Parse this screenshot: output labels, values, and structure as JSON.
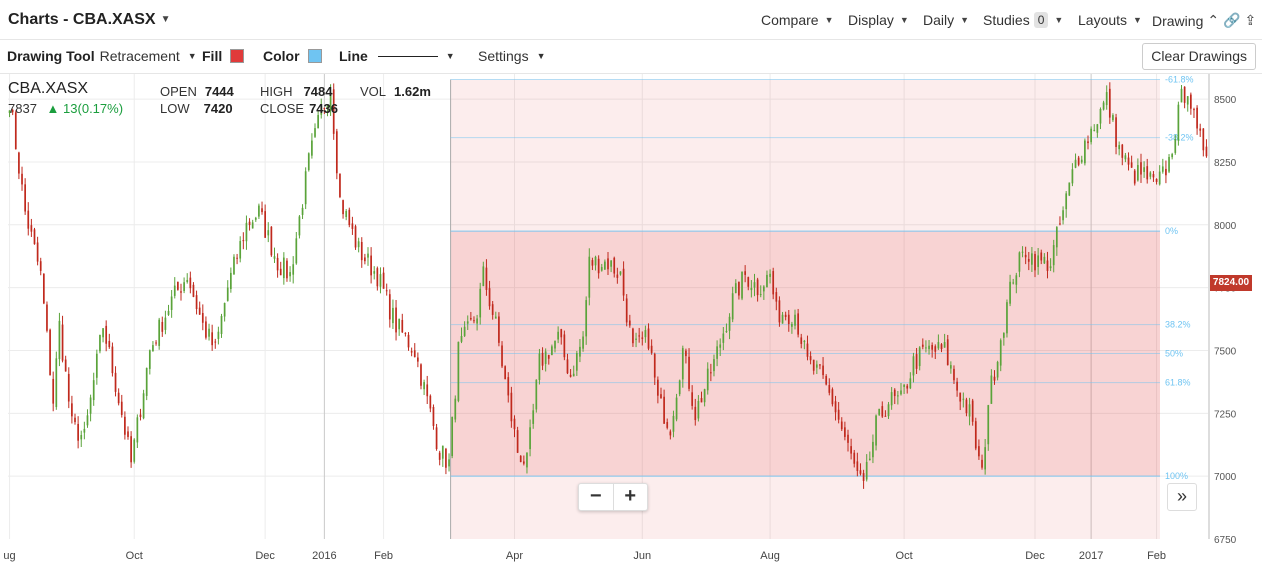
{
  "header": {
    "title": "Charts - CBA.XASX",
    "menus": [
      "Compare",
      "Display",
      "Daily",
      "Studies",
      "Layouts",
      "Drawing"
    ],
    "studies_count": "0"
  },
  "toolbar": {
    "drawing_tool_label": "Drawing Tool",
    "drawing_tool_value": "Retracement",
    "fill_label": "Fill",
    "fill_color": "#e03a3a",
    "color_label": "Color",
    "color_value": "#6fc4f2",
    "line_label": "Line",
    "settings_label": "Settings",
    "clear_label": "Clear Drawings"
  },
  "legend": {
    "symbol": "CBA.XASX",
    "last": "7837",
    "change": "13(0.17%)",
    "open_label": "OPEN",
    "open": "7444",
    "high_label": "HIGH",
    "high": "7484",
    "vol_label": "VOL",
    "vol": "1.62m",
    "low_label": "LOW",
    "low": "7420",
    "close_label": "CLOSE",
    "close": "7436"
  },
  "price_tag": "7824.00",
  "chart_data": {
    "type": "candlestick",
    "symbol": "CBA.XASX",
    "interval": "Daily",
    "xlabel": "",
    "ylabel": "",
    "ylim": [
      6750,
      8600
    ],
    "yticks": [
      6750,
      7000,
      7250,
      7500,
      7750,
      8000,
      8250,
      8500
    ],
    "xticks": [
      {
        "label": "ug",
        "i": 0
      },
      {
        "label": "Oct",
        "i": 40
      },
      {
        "label": "Dec",
        "i": 82
      },
      {
        "label": "2016",
        "i": 101
      },
      {
        "label": "Feb",
        "i": 120
      },
      {
        "label": "Apr",
        "i": 162
      },
      {
        "label": "Jun",
        "i": 203
      },
      {
        "label": "Aug",
        "i": 244
      },
      {
        "label": "Oct",
        "i": 287
      },
      {
        "label": "Dec",
        "i": 329
      },
      {
        "label": "2017",
        "i": 347
      },
      {
        "label": "Feb",
        "i": 368
      }
    ],
    "grid": true,
    "up_color": "#5aa33a",
    "down_color": "#c0291d",
    "anchors": [
      [
        0,
        8500
      ],
      [
        5,
        8050
      ],
      [
        10,
        7800
      ],
      [
        14,
        7300
      ],
      [
        16,
        7600
      ],
      [
        20,
        7200
      ],
      [
        24,
        7150
      ],
      [
        30,
        7600
      ],
      [
        36,
        7250
      ],
      [
        39,
        7050
      ],
      [
        45,
        7500
      ],
      [
        52,
        7700
      ],
      [
        57,
        7800
      ],
      [
        62,
        7600
      ],
      [
        66,
        7500
      ],
      [
        70,
        7750
      ],
      [
        76,
        8000
      ],
      [
        80,
        8050
      ],
      [
        86,
        7850
      ],
      [
        90,
        7800
      ],
      [
        96,
        8250
      ],
      [
        100,
        8450
      ],
      [
        103,
        8550
      ],
      [
        106,
        8100
      ],
      [
        112,
        7900
      ],
      [
        118,
        7800
      ],
      [
        124,
        7600
      ],
      [
        130,
        7500
      ],
      [
        134,
        7300
      ],
      [
        138,
        7100
      ],
      [
        141,
        7050
      ],
      [
        144,
        7500
      ],
      [
        150,
        7650
      ],
      [
        152,
        7800
      ],
      [
        156,
        7600
      ],
      [
        158,
        7450
      ],
      [
        160,
        7300
      ],
      [
        163,
        7100
      ],
      [
        166,
        7050
      ],
      [
        170,
        7450
      ],
      [
        176,
        7550
      ],
      [
        180,
        7400
      ],
      [
        184,
        7550
      ],
      [
        186,
        7850
      ],
      [
        192,
        7850
      ],
      [
        196,
        7800
      ],
      [
        200,
        7500
      ],
      [
        205,
        7550
      ],
      [
        208,
        7300
      ],
      [
        212,
        7200
      ],
      [
        216,
        7500
      ],
      [
        220,
        7250
      ],
      [
        226,
        7450
      ],
      [
        232,
        7700
      ],
      [
        236,
        7800
      ],
      [
        240,
        7750
      ],
      [
        244,
        7800
      ],
      [
        246,
        7650
      ],
      [
        252,
        7650
      ],
      [
        256,
        7450
      ],
      [
        260,
        7400
      ],
      [
        264,
        7300
      ],
      [
        268,
        7150
      ],
      [
        272,
        7000
      ],
      [
        274,
        6950
      ],
      [
        278,
        7200
      ],
      [
        282,
        7300
      ],
      [
        286,
        7300
      ],
      [
        290,
        7450
      ],
      [
        294,
        7500
      ],
      [
        300,
        7500
      ],
      [
        304,
        7350
      ],
      [
        308,
        7250
      ],
      [
        312,
        7000
      ],
      [
        314,
        7300
      ],
      [
        318,
        7550
      ],
      [
        322,
        7800
      ],
      [
        326,
        7900
      ],
      [
        330,
        7850
      ],
      [
        334,
        7850
      ],
      [
        338,
        8050
      ],
      [
        342,
        8250
      ],
      [
        346,
        8350
      ],
      [
        350,
        8450
      ],
      [
        352,
        8500
      ],
      [
        356,
        8300
      ],
      [
        360,
        8200
      ],
      [
        364,
        8200
      ],
      [
        368,
        8150
      ],
      [
        372,
        8250
      ],
      [
        376,
        8500
      ],
      [
        378,
        8550
      ],
      [
        381,
        8350
      ],
      [
        384,
        8300
      ]
    ],
    "candle_count": 385,
    "fib_retracement": {
      "start_i": 142,
      "start_price": 7000,
      "end_price": 7975,
      "levels": [
        {
          "label": "-61.8%",
          "price": 8578
        },
        {
          "label": "-38.2%",
          "price": 8347
        },
        {
          "label": "0%",
          "price": 7975
        },
        {
          "label": "38.2%",
          "price": 7603
        },
        {
          "label": "50%",
          "price": 7488
        },
        {
          "label": "61.8%",
          "price": 7372
        },
        {
          "label": "100%",
          "price": 7000
        }
      ],
      "fill_color": "#e03a3a",
      "line_color": "#6fc4f2"
    }
  }
}
